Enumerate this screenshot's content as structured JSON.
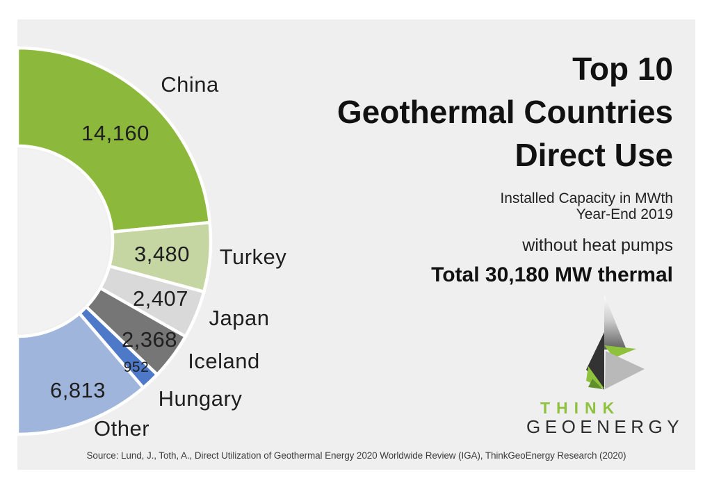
{
  "chart_data": {
    "type": "pie",
    "variant": "half-donut",
    "title": "Top 10 Geothermal Countries Direct Use",
    "subtitle": [
      "Installed Capacity in MWth",
      "Year-End 2019"
    ],
    "note": "without heat pumps",
    "total_label": "Total 30,180 MW thermal",
    "total_value": 30180,
    "unit": "MWth",
    "layout_hint": "semicircle on right side, starts at 12 o'clock, clockwise, donut hole, white segment gaps",
    "segments": [
      {
        "label": "China",
        "value": 14160,
        "display": "14,160",
        "color": "#8cb83c"
      },
      {
        "label": "Turkey",
        "value": 3480,
        "display": "3,480",
        "color": "#c6d6a3"
      },
      {
        "label": "Japan",
        "value": 2407,
        "display": "2,407",
        "color": "#d9d9d9"
      },
      {
        "label": "Iceland",
        "value": 2368,
        "display": "2,368",
        "color": "#767676"
      },
      {
        "label": "Hungary",
        "value": 952,
        "display": "952",
        "color": "#4e79c9"
      },
      {
        "label": "Other",
        "value": 6813,
        "display": "6,813",
        "color": "#9fb5dc"
      }
    ]
  },
  "header": {
    "title_lines": [
      "Top 10",
      "Geothermal Countries",
      "Direct Use"
    ]
  },
  "meta": {
    "capacity_line1": "Installed Capacity in MWth",
    "capacity_line2": "Year-End 2019",
    "pumps": "without heat pumps",
    "total": "Total 30,180 MW thermal"
  },
  "brand": {
    "think": "THINK",
    "geoenergy": "GEOENERGY",
    "green": "#8fc23c",
    "dark": "#2b2b2b"
  },
  "source": "Source: Lund, J., Toth, A., Direct Utilization of Geothermal Energy 2020 Worldwide Review (IGA), ThinkGeoEnergy Research (2020)",
  "colors": {
    "card_background": "#efefef",
    "page_background": "#ffffff",
    "donut_hole": "#f2f2f2",
    "segment_gap": "#ffffff",
    "text": "#1f1f1f"
  }
}
